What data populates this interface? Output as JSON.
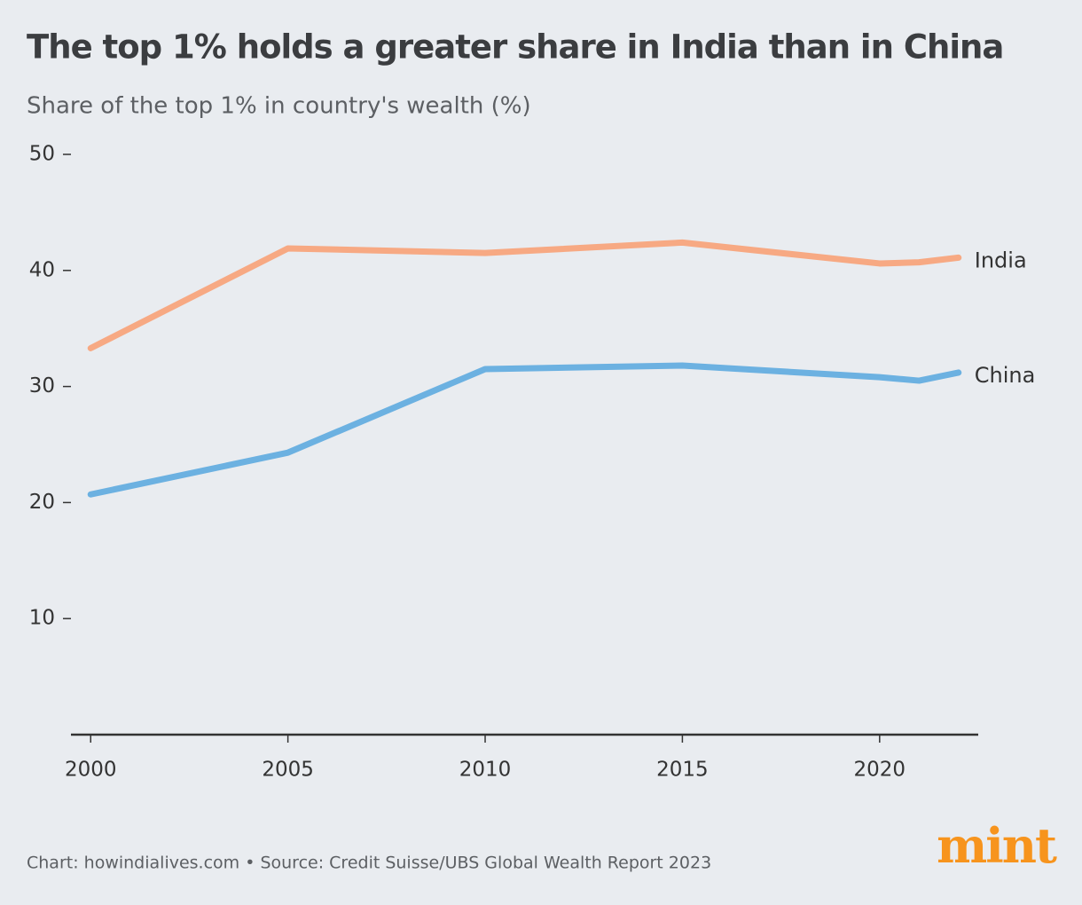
{
  "chart_data": {
    "type": "line",
    "title": "The top 1% holds a greater share in India than in China",
    "subtitle": "Share of the top 1% in country's wealth (%)",
    "x": [
      2000,
      2005,
      2010,
      2015,
      2020,
      2021,
      2022
    ],
    "series": [
      {
        "name": "India",
        "color": "#f7a983",
        "values": [
          33.3,
          41.9,
          41.5,
          42.4,
          40.6,
          40.7,
          41.1
        ]
      },
      {
        "name": "China",
        "color": "#6cb1e1",
        "values": [
          20.7,
          24.3,
          31.5,
          31.8,
          30.8,
          30.5,
          31.2
        ]
      }
    ],
    "xlim": [
      1999.5,
      2022.5
    ],
    "xticks": [
      2000,
      2005,
      2010,
      2015,
      2020
    ],
    "ylim": [
      0,
      50
    ],
    "yticks": [
      10,
      20,
      30,
      40,
      50
    ],
    "source": "Chart: howindialives.com • Source: Credit Suisse/UBS Global Wealth Report 2023",
    "logo": "mint"
  }
}
